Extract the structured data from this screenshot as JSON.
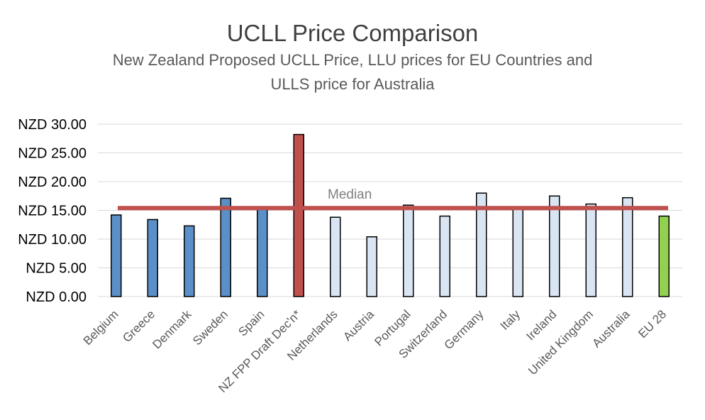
{
  "chart_data": {
    "type": "bar",
    "title": "UCLL Price Comparison",
    "subtitle": [
      "New Zealand Proposed UCLL Price, LLU prices for EU Countries and",
      "ULLS price for Australia"
    ],
    "xlabel": "",
    "ylabel": "",
    "ylim": [
      0,
      30
    ],
    "yticks": [
      0,
      5,
      10,
      15,
      20,
      25,
      30
    ],
    "ytick_labels": [
      "NZD 0.00",
      "NZD 5.00",
      "NZD 10.00",
      "NZD 15.00",
      "NZD 20.00",
      "NZD 25.00",
      "NZD 30.00"
    ],
    "grid": true,
    "legend": "none",
    "categories": [
      "Belgium",
      "Greece",
      "Denmark",
      "Sweden",
      "Spain",
      "NZ FPP Draft Dec'n*",
      "Netherlands",
      "Austria",
      "Portugal",
      "Switzerland",
      "Germany",
      "Italy",
      "Ireland",
      "United Kingdom",
      "Australia",
      "EU 28"
    ],
    "values": [
      14.2,
      13.4,
      12.3,
      17.1,
      15.6,
      28.2,
      13.8,
      10.4,
      15.9,
      14.0,
      18.0,
      15.5,
      17.5,
      16.1,
      17.2,
      14.0
    ],
    "bar_colors": [
      "#5b8fc7",
      "#5b8fc7",
      "#5b8fc7",
      "#5b8fc7",
      "#5b8fc7",
      "#c0504d",
      "#dae5f3",
      "#dae5f3",
      "#dae5f3",
      "#dae5f3",
      "#dae5f3",
      "#dae5f3",
      "#dae5f3",
      "#dae5f3",
      "#dae5f3",
      "#92d050"
    ],
    "median": {
      "label": "Median",
      "value": 15.4,
      "color": "#c0504d"
    }
  }
}
